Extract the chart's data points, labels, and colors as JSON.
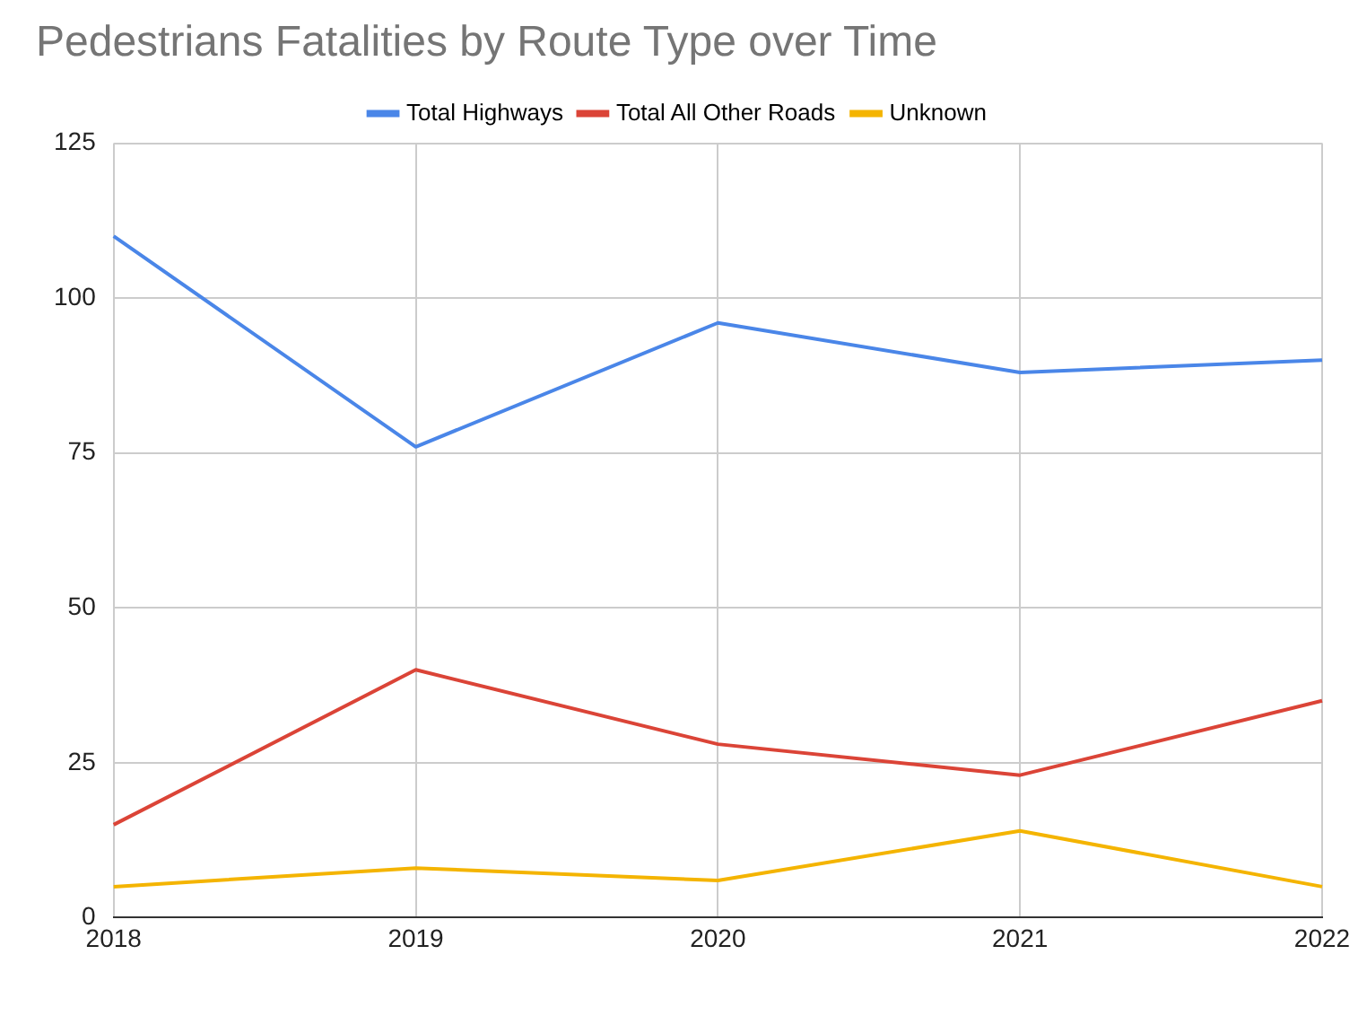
{
  "chart_data": {
    "type": "line",
    "title": "Pedestrians Fatalities by Route Type over Time",
    "categories": [
      "2018",
      "2019",
      "2020",
      "2021",
      "2022"
    ],
    "series": [
      {
        "name": "Total Highways",
        "color": "#4a86e8",
        "values": [
          110,
          76,
          96,
          88,
          90
        ]
      },
      {
        "name": "Total All Other Roads",
        "color": "#db4437",
        "values": [
          15,
          40,
          28,
          23,
          35
        ]
      },
      {
        "name": "Unknown",
        "color": "#f4b400",
        "values": [
          5,
          8,
          6,
          14,
          5
        ]
      }
    ],
    "ylim": [
      0,
      125
    ],
    "yticks": [
      0,
      25,
      50,
      75,
      100,
      125
    ],
    "grid": true,
    "legend": "top",
    "marker": "none",
    "line_style": "solid"
  }
}
